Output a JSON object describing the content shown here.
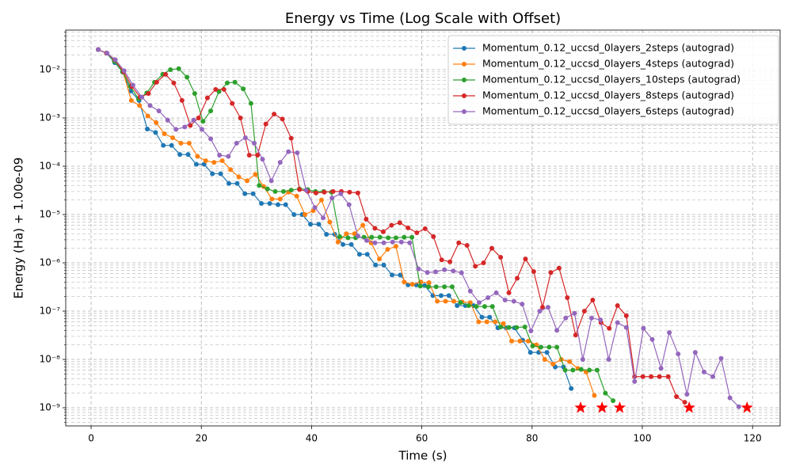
{
  "chart_data": {
    "type": "line",
    "title": "Energy vs Time (Log Scale with Offset)",
    "x_label": "Time (s)",
    "y_label": "Energy (Ha) + 1.00e-09",
    "log_y": true,
    "grid": "both",
    "legend": "upper right",
    "xlim": [
      -4.6,
      125
    ],
    "xticks": [
      0,
      20,
      40,
      60,
      80,
      100,
      120
    ],
    "ylim": [
      4.2e-10,
      0.066
    ],
    "yticks": [
      {
        "value": 1e-09,
        "label": "10⁻⁹"
      },
      {
        "value": 1e-08,
        "label": "10⁻⁸"
      },
      {
        "value": 1e-07,
        "label": "10⁻⁷"
      },
      {
        "value": 1e-06,
        "label": "10⁻⁶"
      },
      {
        "value": 1e-05,
        "label": "10⁻⁵"
      },
      {
        "value": 0.0001,
        "label": "10⁻⁴"
      },
      {
        "value": 0.001,
        "label": "10⁻³"
      },
      {
        "value": 0.01,
        "label": "10⁻²"
      }
    ],
    "series": [
      {
        "name": "Momentum_0.12_uccsd_0layers_2steps (autograd)",
        "color": "#1f77b4",
        "x": [
          1.3,
          2.8,
          4.3,
          5.7,
          7.2,
          8.7,
          10.2,
          11.7,
          13.1,
          14.6,
          16.1,
          17.6,
          19.1,
          20.5,
          22.0,
          23.5,
          25.0,
          26.5,
          27.9,
          29.4,
          30.9,
          32.4,
          33.9,
          35.3,
          36.8,
          38.3,
          39.8,
          41.3,
          42.7,
          44.2,
          45.7,
          47.2,
          48.7,
          50.1,
          51.6,
          53.1,
          54.6,
          56.1,
          57.5,
          59.0,
          60.5,
          62.0,
          63.5,
          64.9,
          66.4,
          67.9,
          69.4,
          70.9,
          72.3,
          73.8,
          75.3,
          76.8,
          78.3,
          79.7,
          81.2,
          82.7,
          84.2,
          85.7,
          87.1
        ],
        "values": [
          0.026,
          0.022,
          0.014,
          0.009,
          0.0036,
          0.0023,
          0.00059,
          0.0005,
          0.00027,
          0.00027,
          0.000175,
          0.000175,
          0.00011,
          0.00011,
          7e-05,
          7e-05,
          4.4e-05,
          4.4e-05,
          2.7e-05,
          2.7e-05,
          1.7e-05,
          1.7e-05,
          1.6e-05,
          1.6e-05,
          1e-05,
          1e-05,
          6.3e-06,
          6.3e-06,
          3.9e-06,
          3.9e-06,
          2.4e-06,
          2.4e-06,
          1.5e-06,
          1.5e-06,
          9e-07,
          9e-07,
          5.6e-07,
          5.6e-07,
          3.5e-07,
          3.5e-07,
          3.4e-07,
          2.1e-07,
          2.1e-07,
          2.1e-07,
          1.3e-07,
          1.3e-07,
          1.3e-07,
          7.5e-08,
          7.5e-08,
          4.5e-08,
          4.5e-08,
          4.5e-08,
          2.5e-08,
          1.4e-08,
          1.4e-08,
          1.4e-08,
          7e-09,
          7e-09,
          2.5e-09
        ]
      },
      {
        "name": "Momentum_0.12_uccsd_0layers_4steps (autograd)",
        "color": "#ff7f0e",
        "x": [
          1.3,
          2.8,
          4.3,
          5.8,
          7.3,
          8.8,
          10.3,
          11.8,
          13.3,
          14.8,
          16.3,
          17.8,
          19.3,
          20.8,
          22.3,
          23.8,
          25.3,
          26.8,
          28.3,
          29.8,
          31.3,
          32.8,
          34.3,
          35.8,
          37.3,
          38.8,
          40.3,
          41.8,
          43.3,
          44.8,
          46.3,
          47.8,
          49.3,
          50.8,
          52.3,
          53.8,
          55.3,
          56.8,
          58.3,
          59.8,
          61.3,
          62.8,
          64.3,
          65.8,
          67.3,
          68.8,
          70.3,
          71.8,
          73.3,
          74.8,
          76.3,
          77.8,
          79.3,
          80.8,
          82.3,
          83.8,
          85.3,
          86.8,
          88.3,
          89.8,
          91.3
        ],
        "values": [
          0.026,
          0.022,
          0.016,
          0.009,
          0.0023,
          0.0018,
          0.0011,
          0.0008,
          0.00047,
          0.00039,
          0.0003,
          0.0003,
          0.00016,
          0.00013,
          0.00012,
          0.00013,
          8.5e-05,
          6e-05,
          5e-05,
          6.8e-05,
          3.8e-05,
          2.1e-05,
          2.1e-05,
          2.9e-05,
          2.4e-05,
          1e-05,
          1.2e-05,
          2e-05,
          7e-06,
          2.7e-06,
          4e-06,
          4e-06,
          6e-06,
          2.6e-06,
          1.2e-06,
          1.9e-06,
          2.2e-06,
          4e-07,
          3.6e-07,
          4e-07,
          3.9e-07,
          1.6e-07,
          1.6e-07,
          1.6e-07,
          1.55e-07,
          1.5e-07,
          6e-08,
          6e-08,
          6e-08,
          5.5e-08,
          2.4e-08,
          2.4e-08,
          2.4e-08,
          2e-08,
          1e-08,
          8e-09,
          1e-08,
          9e-09,
          6.5e-09,
          5.5e-09,
          1.8e-09
        ]
      },
      {
        "name": "Momentum_0.12_uccsd_0layers_10steps (autograd)",
        "color": "#2ca02c",
        "x": [
          1.3,
          2.8,
          4.2,
          5.7,
          7.1,
          8.6,
          10.1,
          11.5,
          13.0,
          14.4,
          15.9,
          17.4,
          18.8,
          20.3,
          21.7,
          23.2,
          24.7,
          26.1,
          27.6,
          29.0,
          30.5,
          32.0,
          33.4,
          34.9,
          36.3,
          37.8,
          39.3,
          40.7,
          42.2,
          43.6,
          45.1,
          46.6,
          48.0,
          49.5,
          50.9,
          52.4,
          53.9,
          55.3,
          56.8,
          58.2,
          59.7,
          61.2,
          62.6,
          64.1,
          65.5,
          67.0,
          68.5,
          69.9,
          71.4,
          72.8,
          74.3,
          75.8,
          77.2,
          78.7,
          80.1,
          81.6,
          83.1,
          84.5,
          86.0,
          87.4,
          88.9,
          90.4,
          91.8,
          93.3,
          94.7
        ],
        "values": [
          0.026,
          0.022,
          0.015,
          0.009,
          0.0045,
          0.0025,
          0.0033,
          0.0055,
          0.008,
          0.01,
          0.0105,
          0.007,
          0.0032,
          0.00085,
          0.0014,
          0.0035,
          0.0053,
          0.0055,
          0.004,
          0.002,
          4e-05,
          3.4e-05,
          3e-05,
          3e-05,
          3.2e-05,
          3.4e-05,
          3.3e-05,
          3e-05,
          3e-05,
          2.9e-05,
          3.5e-06,
          3.3e-06,
          3.3e-06,
          3.4e-06,
          3.4e-06,
          3.4e-06,
          3.3e-06,
          3.3e-06,
          3.4e-06,
          3.4e-06,
          3.3e-07,
          3.2e-07,
          3.2e-07,
          3.2e-07,
          3.2e-07,
          1.5e-07,
          1.3e-07,
          1.25e-07,
          1.25e-07,
          1.25e-07,
          4.7e-08,
          4.6e-08,
          4.6e-08,
          4.7e-08,
          1.9e-08,
          1.8e-08,
          1.8e-08,
          1.8e-08,
          6e-09,
          6e-09,
          6.2e-09,
          6e-09,
          6e-09,
          2e-09,
          1.4e-09
        ]
      },
      {
        "name": "Momentum_0.12_uccsd_0layers_8steps (autograd)",
        "color": "#d62728",
        "x": [
          1.3,
          2.8,
          4.3,
          5.9,
          7.4,
          8.9,
          10.4,
          11.9,
          13.5,
          15.0,
          16.5,
          18.0,
          19.5,
          21.1,
          22.6,
          24.1,
          25.6,
          27.1,
          28.7,
          30.2,
          31.7,
          33.2,
          34.7,
          36.3,
          37.8,
          39.3,
          40.8,
          42.3,
          43.9,
          45.4,
          46.9,
          48.4,
          49.9,
          51.5,
          53.0,
          54.5,
          56.0,
          57.5,
          59.1,
          60.6,
          62.1,
          63.6,
          65.1,
          66.7,
          68.2,
          69.7,
          71.2,
          72.7,
          74.3,
          75.8,
          77.3,
          78.8,
          80.3,
          81.9,
          83.4,
          84.9,
          86.4,
          87.9,
          89.5,
          91.0,
          92.5,
          94.0,
          95.5,
          97.1,
          98.6,
          100.1,
          101.6,
          103.1,
          104.7,
          106.2,
          107.7
        ],
        "values": [
          0.026,
          0.022,
          0.016,
          0.009,
          0.0045,
          0.0027,
          0.0032,
          0.0055,
          0.008,
          0.0053,
          0.0023,
          0.0007,
          0.001,
          0.0026,
          0.0039,
          0.0039,
          0.002,
          0.001,
          0.00017,
          0.00017,
          0.00075,
          0.0012,
          0.00095,
          0.00038,
          3.3e-05,
          3e-05,
          2.8e-05,
          2.9e-05,
          3e-05,
          3e-05,
          2.9e-05,
          2.8e-05,
          8e-06,
          5.2e-06,
          4.4e-06,
          6e-06,
          6.8e-06,
          5.3e-06,
          4.2e-06,
          5.1e-06,
          3.5e-06,
          1.15e-06,
          1.05e-06,
          2.6e-06,
          2.3e-06,
          8.5e-07,
          1e-06,
          2e-06,
          1.3e-06,
          2.4e-07,
          4.8e-07,
          1.2e-06,
          6.6e-07,
          1.2e-07,
          6.3e-07,
          7.8e-07,
          1.9e-07,
          3.2e-08,
          1e-07,
          1.7e-07,
          5.8e-08,
          4.4e-08,
          1.3e-07,
          8e-08,
          4.4e-09,
          4.4e-09,
          4.4e-09,
          4.4e-09,
          4.4e-09,
          1.7e-09,
          1.3e-09
        ]
      },
      {
        "name": "Momentum_0.12_uccsd_0layers_6steps (autograd)",
        "color": "#9467bd",
        "x": [
          1.3,
          2.9,
          4.4,
          6.0,
          7.6,
          9.2,
          10.7,
          12.3,
          13.9,
          15.4,
          17.0,
          18.6,
          20.1,
          21.7,
          23.3,
          24.9,
          26.4,
          28.0,
          29.6,
          31.1,
          32.7,
          34.3,
          35.8,
          37.4,
          39.0,
          40.6,
          42.1,
          43.7,
          45.3,
          46.8,
          48.4,
          50.0,
          51.5,
          53.1,
          54.7,
          56.3,
          57.8,
          59.4,
          61.0,
          62.5,
          64.1,
          65.7,
          67.2,
          68.8,
          70.4,
          72.0,
          73.5,
          75.1,
          76.7,
          78.2,
          79.8,
          81.4,
          82.9,
          84.5,
          86.1,
          87.7,
          89.2,
          90.8,
          92.4,
          93.9,
          95.5,
          97.1,
          98.6,
          100.2,
          101.8,
          103.4,
          104.9,
          106.5,
          108.1,
          109.6,
          111.2,
          112.8,
          114.3,
          115.9,
          117.5
        ],
        "values": [
          0.026,
          0.022,
          0.016,
          0.0095,
          0.0048,
          0.0027,
          0.0018,
          0.0014,
          0.0009,
          0.00058,
          0.00065,
          0.0009,
          0.00058,
          0.00037,
          0.00017,
          0.00016,
          0.0003,
          0.00039,
          0.0003,
          0.00014,
          5e-05,
          0.00012,
          0.0002,
          0.00019,
          3.2e-05,
          1.4e-05,
          8.5e-06,
          2.2e-05,
          2.7e-05,
          1.6e-05,
          3.6e-06,
          2.9e-06,
          2.6e-06,
          2.6e-06,
          2.7e-06,
          2.7e-06,
          2.6e-06,
          7.5e-07,
          6.3e-07,
          6.5e-07,
          7.2e-07,
          6.8e-07,
          6.2e-07,
          2.6e-07,
          1.5e-07,
          1.9e-07,
          2.4e-07,
          1.7e-07,
          1.6e-07,
          1.4e-07,
          3.9e-08,
          1e-07,
          1.2e-07,
          4e-08,
          7.2e-08,
          9e-08,
          1e-08,
          7.2e-08,
          6.6e-08,
          1e-08,
          5.8e-08,
          4.6e-08,
          3.5e-09,
          4.4e-08,
          2.6e-08,
          6.5e-09,
          3.6e-08,
          1.3e-08,
          1.9e-09,
          1.4e-08,
          5.5e-09,
          4.4e-09,
          1.05e-08,
          1.6e-09,
          1.05e-09
        ]
      }
    ],
    "markers": {
      "x": [
        88.8,
        92.7,
        95.9,
        108.5,
        119.0
      ],
      "values": [
        1e-09,
        1e-09,
        1e-09,
        1e-09,
        1e-09
      ],
      "color": "#ff0000",
      "marker": "star"
    }
  }
}
